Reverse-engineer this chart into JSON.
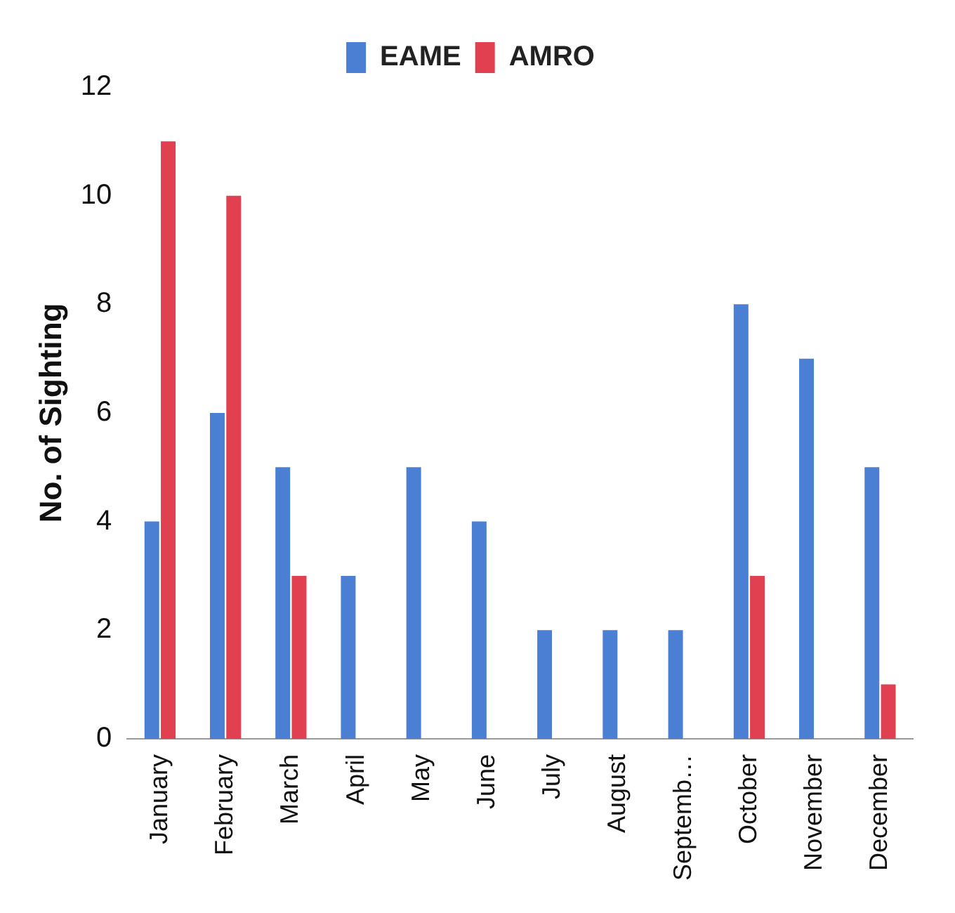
{
  "chart_data": {
    "type": "bar",
    "ylabel": "No. of Sighting",
    "categories": [
      "January",
      "February",
      "March",
      "April",
      "May",
      "June",
      "July",
      "August",
      "Septemb…",
      "October",
      "November",
      "December"
    ],
    "series": [
      {
        "name": "EAME",
        "color": "#4a7fd4",
        "values": [
          4,
          6,
          5,
          3,
          5,
          4,
          2,
          2,
          2,
          8,
          7,
          5
        ]
      },
      {
        "name": "AMRO",
        "color": "#e0404f",
        "values": [
          11,
          10,
          3,
          0,
          0,
          0,
          0,
          0,
          0,
          3,
          0,
          1
        ]
      }
    ],
    "ylim": [
      0,
      12
    ],
    "yticks": [
      0,
      2,
      4,
      6,
      8,
      10,
      12
    ],
    "grid": false,
    "legend": "top"
  }
}
